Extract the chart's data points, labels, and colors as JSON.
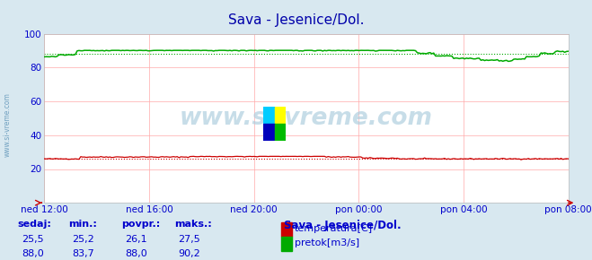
{
  "title": "Sava - Jesenice/Dol.",
  "bg_color": "#d8e8f0",
  "plot_bg_color": "#ffffff",
  "grid_color": "#ffaaaa",
  "ylim": [
    0,
    100
  ],
  "yticks": [
    20,
    40,
    60,
    80,
    100
  ],
  "label_color": "#0000cc",
  "title_color": "#0000aa",
  "n_points": 289,
  "temp_color": "#cc0000",
  "flow_color": "#00aa00",
  "avg_temp": 26.1,
  "avg_flow": 88.0,
  "x_tick_labels": [
    "ned 12:00",
    "ned 16:00",
    "ned 20:00",
    "pon 00:00",
    "pon 04:00",
    "pon 08:00"
  ],
  "watermark": "www.si-vreme.com",
  "left_label": "www.si-vreme.com",
  "legend_title": "Sava - Jesenice/Dol.",
  "legend_items": [
    "temperatura[C]",
    "pretok[m3/s]"
  ],
  "legend_colors": [
    "#cc0000",
    "#00aa00"
  ],
  "table_headers": [
    "sedaj:",
    "min.:",
    "povpr.:",
    "maks.:"
  ],
  "table_temp": [
    "25,5",
    "25,2",
    "26,1",
    "27,5"
  ],
  "table_flow": [
    "88,0",
    "83,7",
    "88,0",
    "90,2"
  ]
}
